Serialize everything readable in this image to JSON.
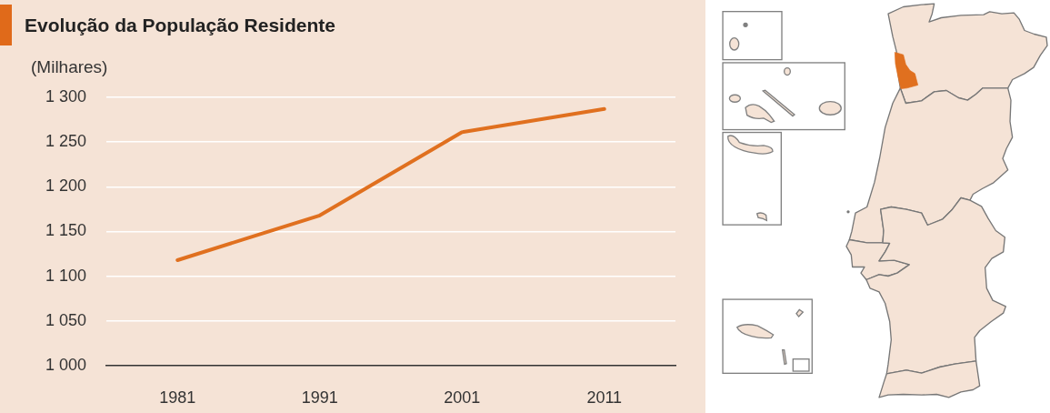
{
  "chart_data": {
    "type": "line",
    "title": "Evolução da População Residente",
    "ylabel": "(Milhares)",
    "categories": [
      "1981",
      "1991",
      "2001",
      "2011"
    ],
    "series": [
      {
        "color": "#e0701f",
        "values": [
          1118,
          1168,
          1261,
          1287
        ]
      }
    ],
    "ylim": [
      1000,
      1300
    ],
    "yticks": [
      {
        "value": 1000,
        "label": "1 000"
      },
      {
        "value": 1050,
        "label": "1 050"
      },
      {
        "value": 1100,
        "label": "1 100"
      },
      {
        "value": 1150,
        "label": "1 150"
      },
      {
        "value": 1200,
        "label": "1 200"
      },
      {
        "value": 1250,
        "label": "1 250"
      },
      {
        "value": 1300,
        "label": "1 300"
      }
    ],
    "grid": "y",
    "marker": "none"
  }
}
